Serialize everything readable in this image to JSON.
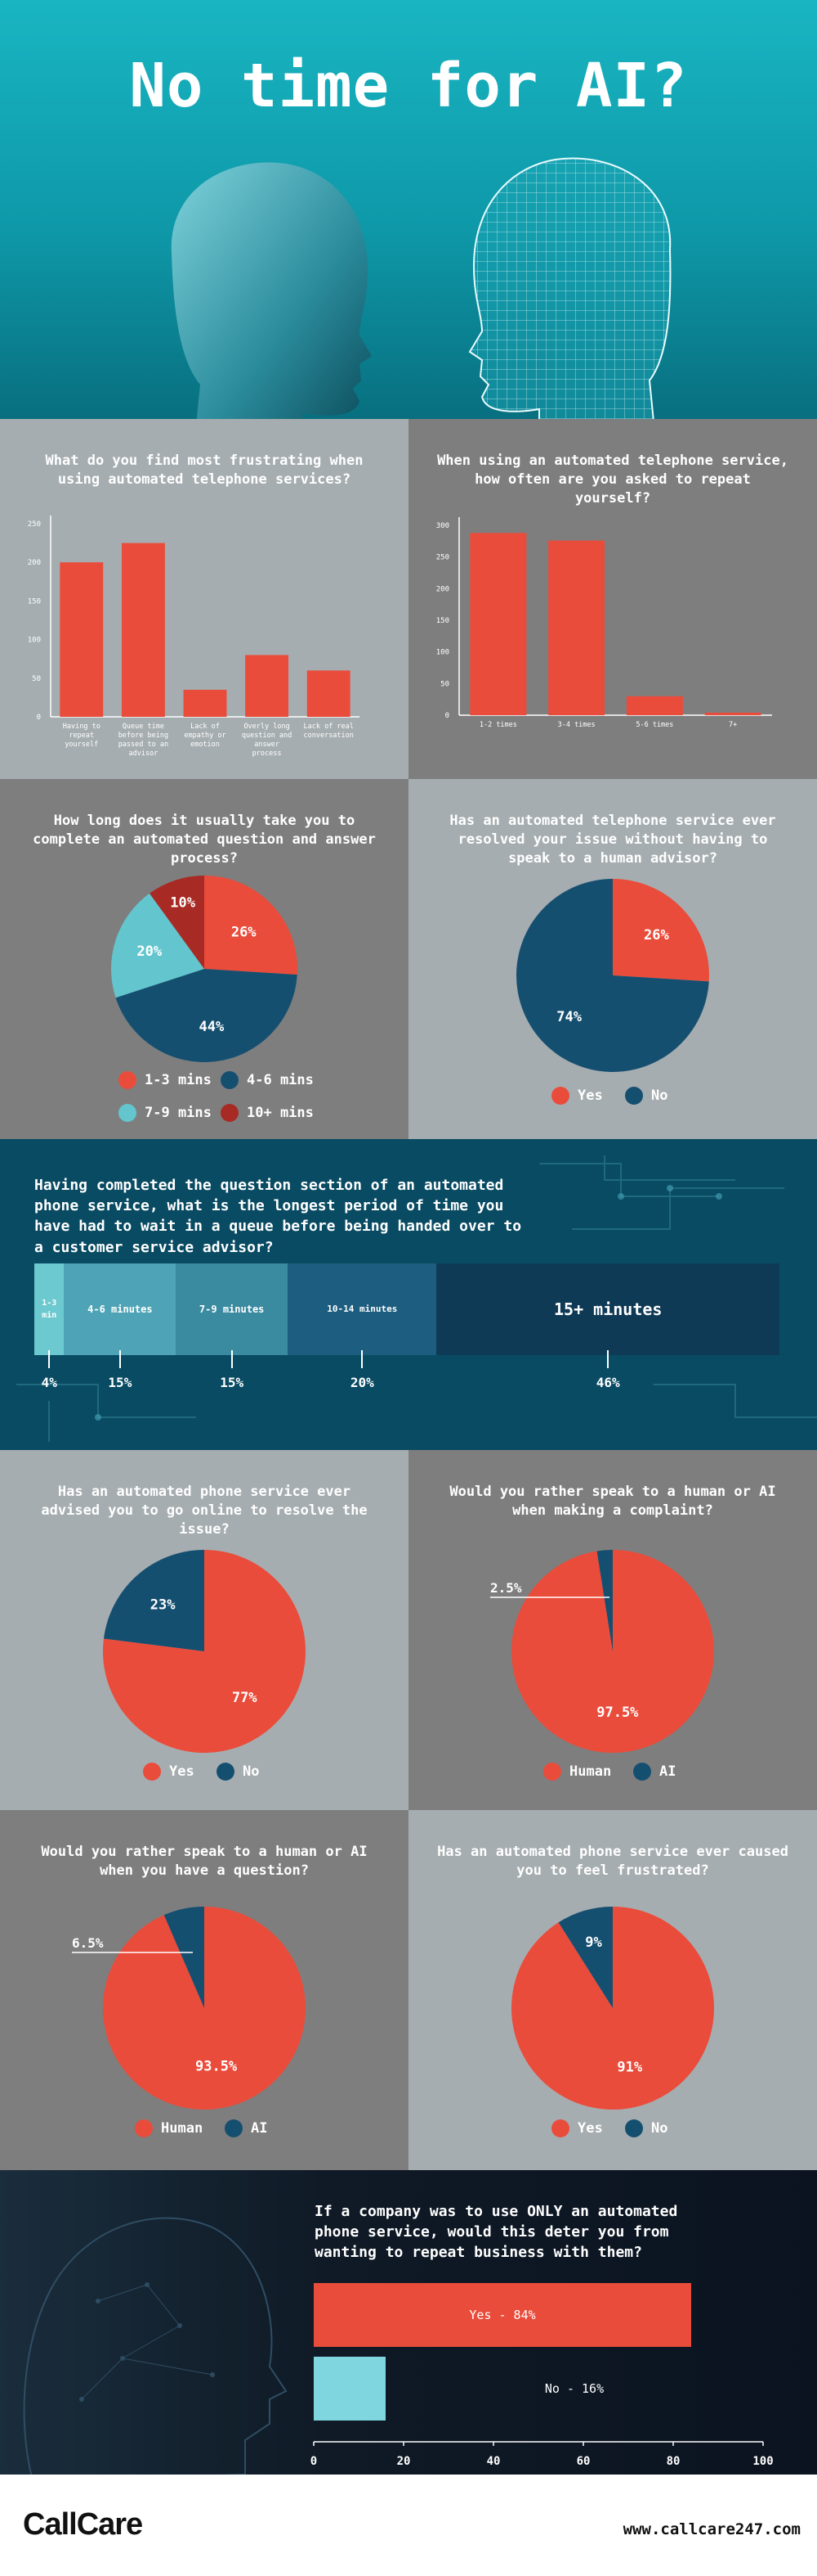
{
  "hero": {
    "title": "No time for AI?"
  },
  "colors": {
    "red": "#ea4c3b",
    "navy": "#154f70",
    "teal": "#63c6cf",
    "darkred": "#a82a24"
  },
  "chart_data": [
    {
      "type": "bar",
      "title": "What do you find most frustrating when using automated telephone services?",
      "categories": [
        "Having to repeat yourself",
        "Queue time before being passed to an advisor",
        "Lack of empathy or emotion",
        "Overly long question and answer process",
        "Lack of real conversation"
      ],
      "values": [
        200,
        225,
        35,
        80,
        60
      ],
      "ylim": [
        0,
        250
      ],
      "yticks": [
        0,
        50,
        100,
        150,
        200,
        250
      ]
    },
    {
      "type": "bar",
      "title": "When using an automated telephone service, how often are you asked to repeat yourself?",
      "categories": [
        "1-2 times",
        "3-4 times",
        "5-6 times",
        "7+"
      ],
      "values": [
        288,
        276,
        30,
        4
      ],
      "ylim": [
        0,
        300
      ],
      "yticks": [
        0,
        50,
        100,
        150,
        200,
        250,
        300
      ]
    },
    {
      "type": "pie",
      "title": "How long does it usually take you to complete an automated question and answer process?",
      "labels": [
        "1-3 mins",
        "4-6 mins",
        "7-9 mins",
        "10+ mins"
      ],
      "values": [
        26,
        44,
        20,
        10
      ],
      "value_labels": [
        "26%",
        "44%",
        "20%",
        "10%"
      ]
    },
    {
      "type": "pie",
      "title": "Has an automated telephone service ever resolved your issue without having to speak to a human advisor?",
      "labels": [
        "Yes",
        "No"
      ],
      "values": [
        26,
        74
      ],
      "value_labels": [
        "26%",
        "74%"
      ]
    },
    {
      "type": "bar",
      "title": "Having completed the question section of an automated phone service, what is the longest period of time you have had to wait in a queue before being handed over to a customer service advisor?",
      "categories": [
        "1-3 min",
        "4-6 minutes",
        "7-9 minutes",
        "10-14 minutes",
        "15+ minutes"
      ],
      "values": [
        4,
        15,
        15,
        20,
        46
      ],
      "value_labels": [
        "4%",
        "15%",
        "15%",
        "20%",
        "46%"
      ]
    },
    {
      "type": "pie",
      "title": "Has an automated phone service ever advised you to go online to resolve the issue?",
      "labels": [
        "Yes",
        "No"
      ],
      "values": [
        77,
        23
      ],
      "value_labels": [
        "77%",
        "23%"
      ]
    },
    {
      "type": "pie",
      "title": "Would you rather speak to a human or AI when making a complaint?",
      "labels": [
        "Human",
        "AI"
      ],
      "values": [
        97.5,
        2.5
      ],
      "value_labels": [
        "97.5%",
        "2.5%"
      ]
    },
    {
      "type": "pie",
      "title": "Would you rather speak to a human or AI when you have a question?",
      "labels": [
        "Human",
        "AI"
      ],
      "values": [
        93.5,
        6.5
      ],
      "value_labels": [
        "93.5%",
        "6.5%"
      ]
    },
    {
      "type": "pie",
      "title": "Has an automated phone service ever caused you to feel frustrated?",
      "labels": [
        "Yes",
        "No"
      ],
      "values": [
        91,
        9
      ],
      "value_labels": [
        "91%",
        "9%"
      ]
    },
    {
      "type": "bar",
      "title": "If a company was to use ONLY an automated phone service, would this deter you from wanting to repeat business with them?",
      "categories": [
        "Yes",
        "No"
      ],
      "values": [
        84,
        16
      ],
      "bar_labels": [
        "Yes - 84%",
        "No - 16%"
      ],
      "xlim": [
        0,
        100
      ],
      "xticks": [
        0,
        20,
        40,
        60,
        80,
        100
      ]
    }
  ],
  "footer": {
    "logo": "CallCare",
    "url": "www.callcare247.com"
  }
}
